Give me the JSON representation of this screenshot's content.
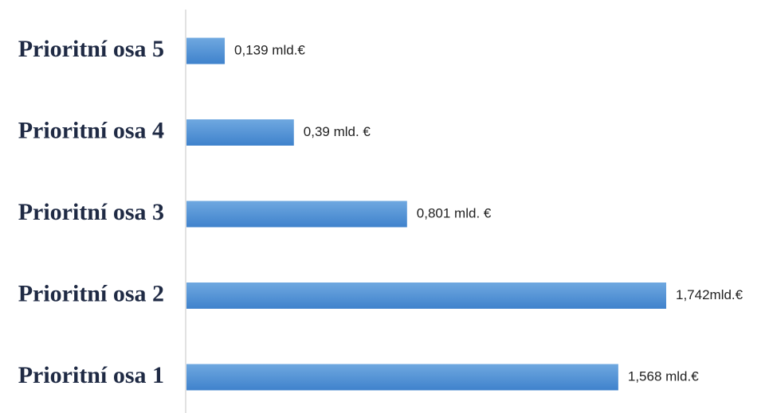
{
  "chart_data": {
    "type": "bar",
    "orientation": "horizontal",
    "categories": [
      "Prioritní osa 5",
      "Prioritní osa 4",
      "Prioritní osa 3",
      "Prioritní osa 2",
      "Prioritní osa 1"
    ],
    "values": [
      0.139,
      0.39,
      0.801,
      1.742,
      1.568
    ],
    "data_labels": [
      "0,139 mld.€",
      "0,39 mld. €",
      "0,801 mld. €",
      "1,742mld.€",
      "1,568 mld.€"
    ],
    "title": "",
    "xlabel": "",
    "ylabel": "",
    "xlim": [
      0,
      1.742
    ],
    "grid": false,
    "legend": "none",
    "colors": {
      "bar_top": "#6fa8e0",
      "bar_bottom": "#3f82cc",
      "axis": "#d9d9d9"
    }
  }
}
